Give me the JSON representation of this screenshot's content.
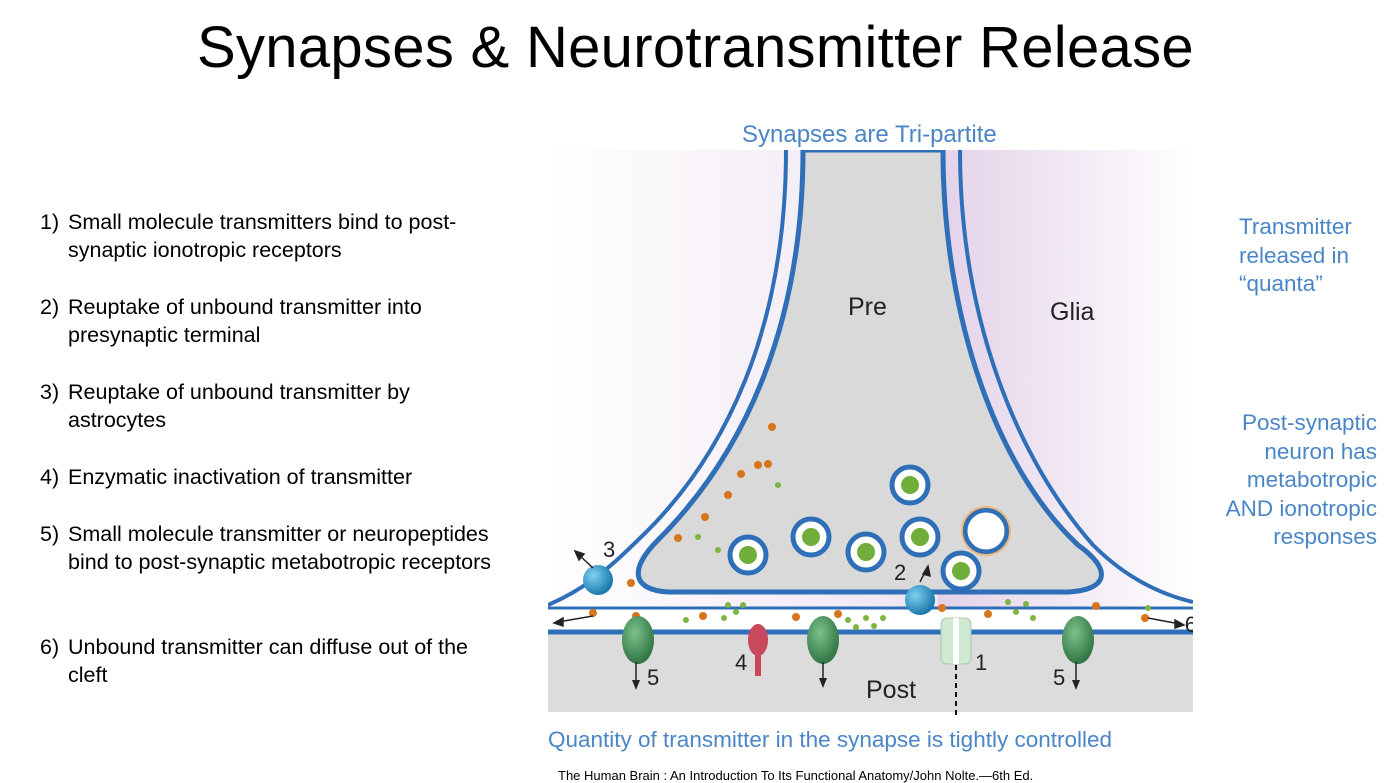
{
  "title": "Synapses & Neurotransmitter Release",
  "steps": [
    {
      "num": "1)",
      "text": "Small molecule transmitters bind to post-synaptic ionotropic receptors"
    },
    {
      "num": "2)",
      "text": "Reuptake of unbound transmitter into presynaptic terminal"
    },
    {
      "num": "3)",
      "text": "Reuptake of unbound transmitter by astrocytes"
    },
    {
      "num": "4)",
      "text": "Enzymatic inactivation of transmitter"
    },
    {
      "num": "5)",
      "text": "Small molecule transmitter or neuropeptides bind to post-synaptic metabotropic receptors"
    },
    {
      "num": "6)",
      "text": "Unbound transmitter can diffuse out of the cleft"
    }
  ],
  "diagram": {
    "heading": "Synapses are Tri-partite",
    "labels": {
      "pre": "Pre",
      "glia": "Glia",
      "post": "Post",
      "n1": "1",
      "n2": "2",
      "n3": "3",
      "n4": "4",
      "n5a": "5",
      "n5b": "5",
      "n6": "6"
    }
  },
  "notes": {
    "quanta": "Transmitter released in “quanta”",
    "post_synaptic": "Post-synaptic neuron has metabotropic AND ionotropic responses"
  },
  "caption": "Quantity of transmitter in the synapse is tightly controlled",
  "citation": "The Human Brain : An Introduction To Its Functional Anatomy/John Nolte.—6th Ed.",
  "colors": {
    "accent_text": "#4a86c7",
    "membrane": "#2f6fb8",
    "glia_tint": "#e6d6ea",
    "cytoplasm": "#dcdcdc",
    "receptor_green": "#3f8f52",
    "transporter_blue": "#1e8fc2",
    "enzyme_red": "#c9485b",
    "ion_channel": "#cfe8d2",
    "transmitter_orange": "#d8741c",
    "transmitter_green": "#7cb540"
  }
}
